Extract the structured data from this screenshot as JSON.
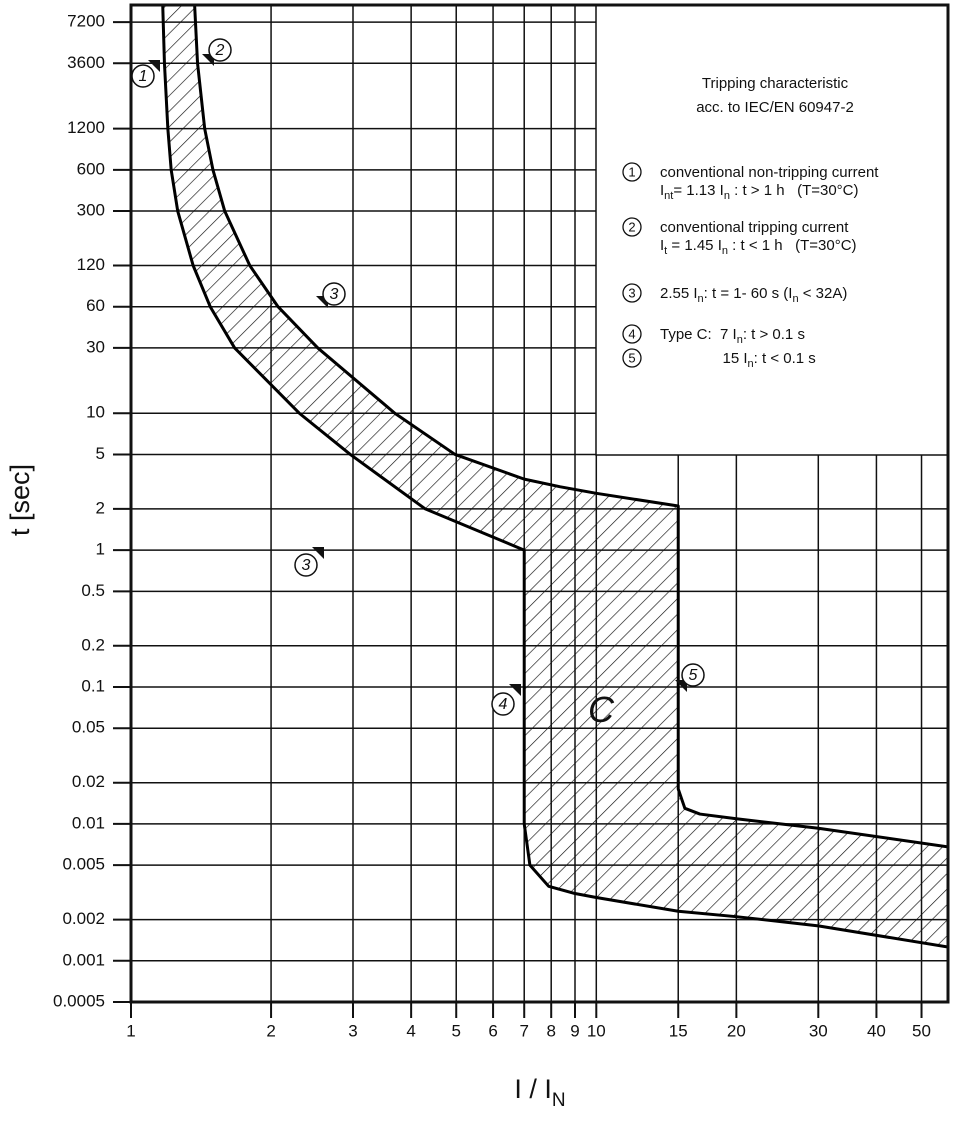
{
  "chart_data": {
    "type": "band",
    "xlabel": {
      "main": "I / I",
      "sub": "N"
    },
    "ylabel": "t [sec]",
    "log_x": true,
    "log_y": true,
    "grid": true,
    "fill": "hatch",
    "xlim": [
      1,
      57
    ],
    "ylim": [
      0.0005,
      9600
    ],
    "xticks": [
      1,
      2,
      3,
      4,
      5,
      6,
      7,
      8,
      9,
      10,
      15,
      20,
      30,
      40,
      50
    ],
    "yticks": [
      7200,
      3600,
      1200,
      600,
      300,
      120,
      60,
      30,
      10,
      5,
      2,
      1,
      0.5,
      0.2,
      0.1,
      0.05,
      0.02,
      0.01,
      0.005,
      0.002,
      0.001,
      0.0005
    ],
    "series": [
      {
        "color": "#000000",
        "x": [
          1.17,
          1.18,
          1.2,
          1.22,
          1.26,
          1.36,
          1.48,
          1.67,
          2.3,
          2.96,
          4.29,
          7,
          7,
          7.2,
          7.9,
          9,
          10,
          15,
          20,
          30,
          57
        ],
        "values": [
          9600,
          3600,
          1200,
          600,
          300,
          120,
          60,
          30,
          10,
          5,
          2,
          1,
          0.01,
          0.005,
          0.0035,
          0.0031,
          0.0029,
          0.0023,
          0.0021,
          0.0018,
          0.00126
        ]
      },
      {
        "color": "#000000",
        "x": [
          1.37,
          1.39,
          1.44,
          1.5,
          1.59,
          1.8,
          2.07,
          2.52,
          3.69,
          4.97,
          7,
          8.37,
          10,
          15,
          15,
          15.5,
          16.7,
          20,
          30,
          57
        ],
        "values": [
          9600,
          3600,
          1200,
          600,
          300,
          120,
          60,
          30,
          10,
          5,
          3.3,
          2.9,
          2.6,
          2.1,
          0.018,
          0.013,
          0.0118,
          0.0109,
          0.0093,
          0.0068
        ]
      }
    ],
    "band_label": "C",
    "markers": [
      "1",
      "2",
      "3",
      "3",
      "4",
      "5"
    ]
  },
  "legend": {
    "title": [
      "Tripping characteristic",
      "acc. to IEC/EN 60947-2"
    ],
    "items": [
      {
        "num": "1",
        "lines": [
          [
            "conventional non-tripping current"
          ],
          [
            "I",
            "nt",
            "= 1.13 I",
            "n",
            " : t > 1 h   (T=30°C)"
          ]
        ]
      },
      {
        "num": "2",
        "lines": [
          [
            "conventional tripping current"
          ],
          [
            "I",
            "t",
            " = 1.45 I",
            "n",
            " : t < 1 h   (T=30°C)"
          ]
        ]
      },
      {
        "num": "3",
        "lines": [
          [
            "2.55 I",
            "n",
            ": t = 1- 60 s (I",
            "n",
            " < 32A)"
          ]
        ]
      },
      {
        "num": "4",
        "lines": [
          [
            "Type C:  7 I",
            "n",
            ": t > 0.1 s"
          ]
        ]
      },
      {
        "num": "5",
        "lines": [
          [
            "               15 I",
            "n",
            ": t < 0.1 s"
          ]
        ]
      }
    ]
  }
}
